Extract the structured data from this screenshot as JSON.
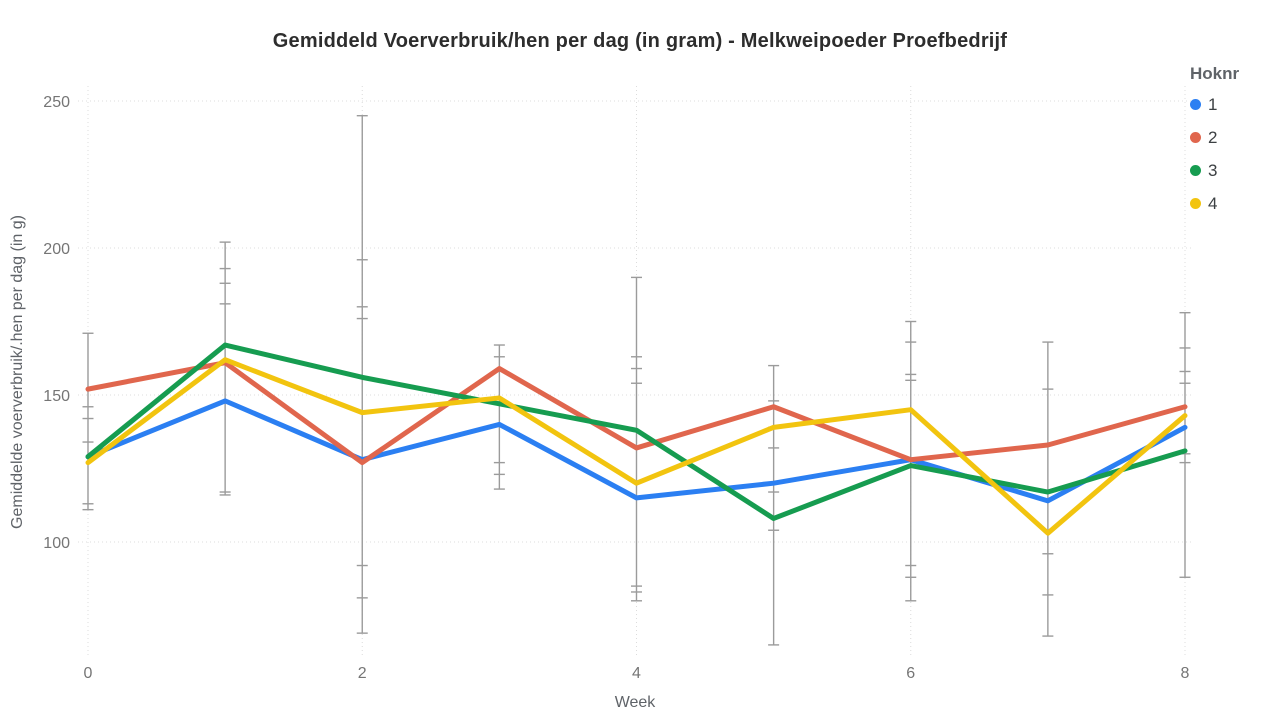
{
  "chart_data": {
    "type": "line",
    "title": "Gemiddeld Voerverbruik/hen per dag (in gram) - Melkweipoeder Proefbedrijf",
    "xlabel": "Week",
    "ylabel": "Gemiddelde voerverbruik/.hen per dag (in g)",
    "x": [
      0,
      1,
      2,
      3,
      4,
      5,
      6,
      7,
      8
    ],
    "xticks": [
      0,
      2,
      4,
      6,
      8
    ],
    "yticks": [
      100,
      150,
      200,
      250
    ],
    "ylim": [
      60,
      256
    ],
    "grid": "dotted-major-both",
    "legend": {
      "title": "Hoknr",
      "position": "top-right",
      "entries": [
        {
          "label": "1",
          "color": "#2b7ff2"
        },
        {
          "label": "2",
          "color": "#e0664d"
        },
        {
          "label": "3",
          "color": "#169c50"
        },
        {
          "label": "4",
          "color": "#f2c40f"
        }
      ]
    },
    "series": [
      {
        "name": "1",
        "color": "#2b7ff2",
        "values": [
          129,
          148,
          128,
          140,
          115,
          120,
          128,
          114,
          139
        ]
      },
      {
        "name": "2",
        "color": "#e0664d",
        "values": [
          152,
          161,
          127,
          159,
          132,
          146,
          128,
          133,
          146
        ]
      },
      {
        "name": "3",
        "color": "#169c50",
        "values": [
          129,
          167,
          156,
          147,
          138,
          108,
          126,
          117,
          131
        ]
      },
      {
        "name": "4",
        "color": "#f2c40f",
        "values": [
          127,
          162,
          144,
          149,
          120,
          139,
          145,
          103,
          143
        ]
      }
    ],
    "error_bars": [
      {
        "week": 0,
        "min": 111,
        "max": 171,
        "caps": [
          171,
          146,
          142,
          134,
          113,
          111
        ]
      },
      {
        "week": 1,
        "min": 116,
        "max": 202,
        "caps": [
          202,
          193,
          188,
          181,
          117,
          116
        ]
      },
      {
        "week": 2,
        "min": 69,
        "max": 245,
        "caps": [
          245,
          196,
          180,
          176,
          92,
          81,
          69
        ]
      },
      {
        "week": 3,
        "min": 118,
        "max": 167,
        "caps": [
          167,
          163,
          127,
          123,
          118
        ]
      },
      {
        "week": 4,
        "min": 80,
        "max": 190,
        "caps": [
          190,
          163,
          159,
          154,
          85,
          83,
          80
        ]
      },
      {
        "week": 5,
        "min": 65,
        "max": 160,
        "caps": [
          160,
          148,
          139,
          132,
          117,
          104,
          65
        ]
      },
      {
        "week": 6,
        "min": 80,
        "max": 175,
        "caps": [
          175,
          168,
          157,
          155,
          92,
          88,
          80
        ]
      },
      {
        "week": 7,
        "min": 68,
        "max": 168,
        "caps": [
          168,
          152,
          96,
          82,
          68
        ]
      },
      {
        "week": 8,
        "min": 88,
        "max": 178,
        "caps": [
          178,
          166,
          158,
          154,
          130,
          127,
          88
        ]
      }
    ],
    "style": {
      "grid_color": "#dcdcdc",
      "errorbar_color": "#9b9b9b",
      "tick_text_color": "#757575",
      "axis_title_color": "#5f6368",
      "title_color": "#2d2d2d",
      "background": "#ffffff",
      "line_width": 5
    }
  }
}
